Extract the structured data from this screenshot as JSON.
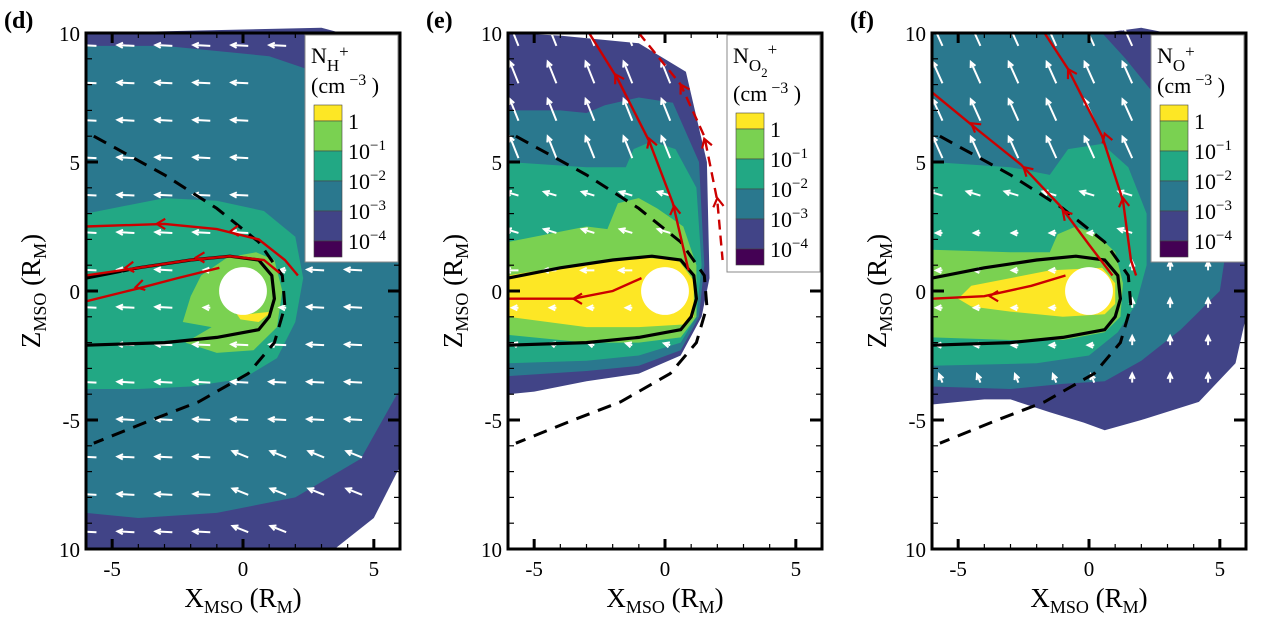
{
  "chart_data": [
    {
      "type": "heatmap",
      "panel": "(d)",
      "title": "",
      "species": "H+",
      "legend_title": "N_H+",
      "legend_units": "(cm^-3)",
      "xlabel": "X_MSO (R_M)",
      "ylabel": "Z_MSO (R_M)",
      "xlim": [
        -6,
        6
      ],
      "ylim": [
        -10,
        10
      ],
      "x_ticks": [
        "-5",
        "0",
        "5"
      ],
      "y_ticks": [
        "10",
        "5",
        "0",
        "-5",
        "10"
      ],
      "grid": false,
      "legend_placement": "top-right",
      "levels": [
        "1",
        "10^-1",
        "10^-2",
        "10^-3",
        "10^-4"
      ],
      "description": "Enhanced H+ density near planet; tailward flow (arrows pointing -X)",
      "flow_direction": "anti-sunward"
    },
    {
      "type": "heatmap",
      "panel": "(e)",
      "species": "O2+",
      "legend_title": "N_O2+",
      "legend_units": "(cm^-3)",
      "xlabel": "X_MSO (R_M)",
      "ylabel": "Z_MSO (R_M)",
      "xlim": [
        -6,
        6
      ],
      "ylim": [
        -10,
        10
      ],
      "x_ticks": [
        "-5",
        "0",
        "5"
      ],
      "y_ticks": [
        "10",
        "5",
        "0",
        "-5",
        "10"
      ],
      "grid": false,
      "legend_placement": "top-right",
      "levels": [
        "1",
        "10^-1",
        "10^-2",
        "10^-3",
        "10^-4"
      ],
      "description": "O2+ plume toward +Z; densest in nightside tail",
      "flow_direction": "northward/tailward"
    },
    {
      "type": "heatmap",
      "panel": "(f)",
      "species": "O+",
      "legend_title": "N_O+",
      "legend_units": "(cm^-3)",
      "xlabel": "X_MSO (R_M)",
      "ylabel": "Z_MSO (R_M)",
      "xlim": [
        -6,
        6
      ],
      "ylim": [
        -10,
        10
      ],
      "x_ticks": [
        "-5",
        "0",
        "5"
      ],
      "y_ticks": [
        "10",
        "5",
        "0",
        "-5",
        "10"
      ],
      "grid": false,
      "legend_placement": "top-right",
      "levels": [
        "1",
        "10^-1",
        "10^-2",
        "10^-3",
        "10^-4"
      ],
      "description": "O+ plume extending toward +Z and dayside",
      "flow_direction": "northward/tailward"
    }
  ],
  "colors": {
    "level_1": "#fde725",
    "level_1e-1": "#7ad151",
    "level_1e-2": "#22a884",
    "level_1e-3": "#2a788e",
    "level_1e-4": "#414487",
    "level_below": "#440154",
    "field_line": "#cc0000",
    "boundary": "#000000"
  },
  "panels": [
    {
      "tag": "(d)",
      "ion": "H",
      "ion_sub2": "",
      "charge": "+"
    },
    {
      "tag": "(e)",
      "ion": "O",
      "ion_sub2": "2",
      "charge": "+"
    },
    {
      "tag": "(f)",
      "ion": "O",
      "ion_sub2": "",
      "charge": "+"
    }
  ],
  "axis": {
    "x_var": "X",
    "x_sub": "MSO",
    "unit": "R",
    "unit_sub": "M",
    "y_var": "Z",
    "y_sub": "MSO",
    "x_tick_labels": [
      "-5",
      "0",
      "5"
    ],
    "y_tick_labels": [
      "10",
      "5",
      "0",
      "-5",
      "10"
    ]
  },
  "legend": {
    "density_letter": "N",
    "units_open": "(cm",
    "units_exp": "−3",
    "units_close": ")",
    "levels": [
      {
        "base": "1",
        "exp": ""
      },
      {
        "base": "10",
        "exp": "−1"
      },
      {
        "base": "10",
        "exp": "−2"
      },
      {
        "base": "10",
        "exp": "−3"
      },
      {
        "base": "10",
        "exp": "−4"
      }
    ]
  }
}
